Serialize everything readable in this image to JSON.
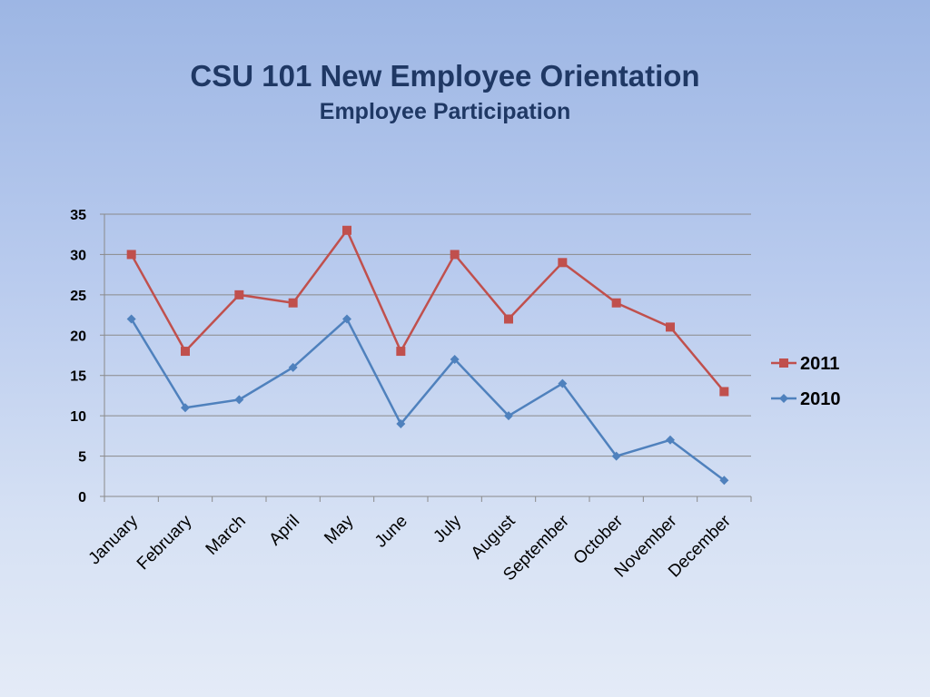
{
  "slide": {
    "title": "CSU 101 New Employee Orientation",
    "subtitle": "Employee Participation"
  },
  "chart_data": {
    "type": "line",
    "title": "CSU 101 New Employee Orientation",
    "subtitle": "Employee Participation",
    "xlabel": "",
    "ylabel": "",
    "categories": [
      "January",
      "February",
      "March",
      "April",
      "May",
      "June",
      "July",
      "August",
      "September",
      "October",
      "November",
      "December"
    ],
    "ylim": [
      0,
      35
    ],
    "yticks": [
      0,
      5,
      10,
      15,
      20,
      25,
      30,
      35
    ],
    "grid": true,
    "legend_position": "right",
    "series": [
      {
        "name": "2011",
        "color": "#c0504d",
        "marker": "square",
        "values": [
          30,
          18,
          25,
          24,
          33,
          18,
          30,
          22,
          29,
          24,
          21,
          13
        ]
      },
      {
        "name": "2010",
        "color": "#4f81bd",
        "marker": "diamond",
        "values": [
          22,
          11,
          12,
          16,
          22,
          9,
          17,
          10,
          14,
          5,
          7,
          2
        ]
      }
    ]
  }
}
